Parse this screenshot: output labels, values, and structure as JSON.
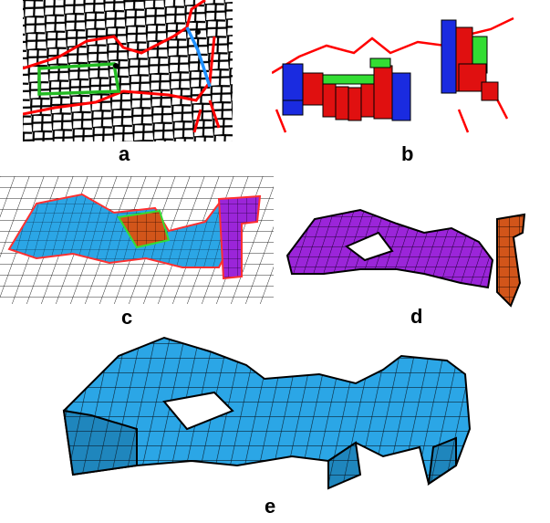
{
  "figure": {
    "panels": [
      {
        "id": "a",
        "label": "a"
      },
      {
        "id": "b",
        "label": "b"
      },
      {
        "id": "c",
        "label": "c"
      },
      {
        "id": "d",
        "label": "d"
      },
      {
        "id": "e",
        "label": "e"
      }
    ],
    "colors": {
      "mesh_lines": "#000000",
      "boundary_red": "#ff0000",
      "sheet_green": "#22bb22",
      "sheet_blue": "#1e90ff",
      "cell_blue": "#1a2be0",
      "cell_red": "#e01010",
      "cell_green": "#33dd33",
      "surface_cyan": "#2ba6e6",
      "surface_purple": "#9b25d9",
      "surface_orange": "#d2551a"
    }
  }
}
